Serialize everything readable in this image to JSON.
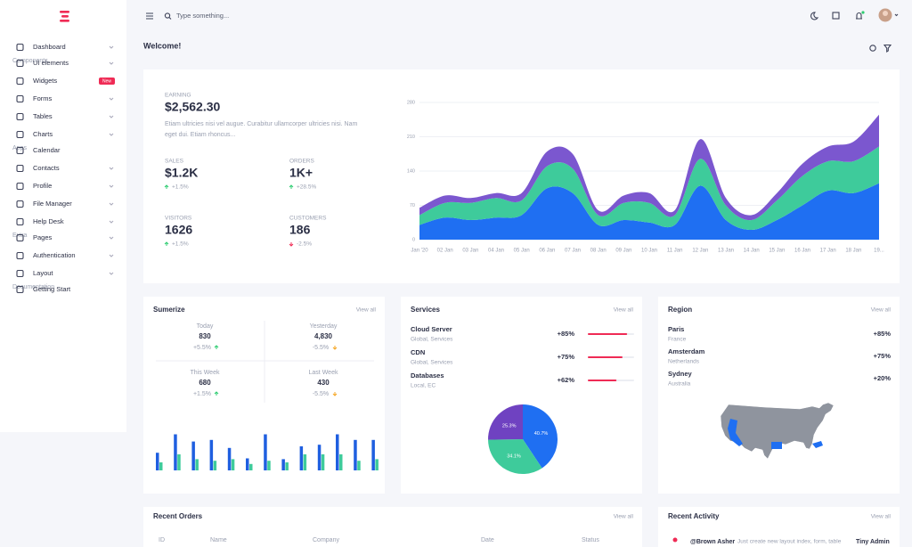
{
  "sidebar": {
    "sections": [
      {
        "items": [
          {
            "label": "Dashboard",
            "submenu": true
          }
        ]
      },
      {
        "title": "Components",
        "items": [
          {
            "label": "UI elements",
            "submenu": true
          },
          {
            "label": "Widgets",
            "badge": "New"
          },
          {
            "label": "Forms",
            "submenu": true
          },
          {
            "label": "Tables",
            "submenu": true
          },
          {
            "label": "Charts",
            "submenu": true
          }
        ]
      },
      {
        "title": "Apps",
        "items": [
          {
            "label": "Calendar"
          },
          {
            "label": "Contacts",
            "submenu": true
          },
          {
            "label": "Profile",
            "submenu": true
          },
          {
            "label": "File Manager",
            "submenu": true
          },
          {
            "label": "Help Desk",
            "submenu": true
          }
        ]
      },
      {
        "title": "Extra",
        "items": [
          {
            "label": "Pages",
            "submenu": true
          },
          {
            "label": "Authentication",
            "submenu": true
          },
          {
            "label": "Layout",
            "submenu": true
          }
        ]
      },
      {
        "title": "Documentation",
        "items": [
          {
            "label": "Getting Start"
          }
        ]
      }
    ]
  },
  "topbar": {
    "search_placeholder": "Type something..."
  },
  "page_title": "Welcome!",
  "earning": {
    "label": "EARNING",
    "amount": "$2,562.30",
    "description": [
      "Etiam ultricies nisi vel augue. Curabitur ullamcorper ultricies nisi. Nam",
      "eget dui. Etiam rhoncus..."
    ],
    "stats": [
      {
        "label": "SALES",
        "value": "$1.2K",
        "change": "+1.5%"
      },
      {
        "label": "ORDERS",
        "value": "1K+",
        "change": "+28.5%"
      },
      {
        "label": "VISITORS",
        "value": "1626",
        "change": "+1.5%"
      },
      {
        "label": "CUSTOMERS",
        "value": "186",
        "change": "-2.5%"
      }
    ],
    "chart_data": {
      "type": "area",
      "stacked": true,
      "x": [
        "Jan '20",
        "02 Jan",
        "03 Jan",
        "04 Jan",
        "05 Jan",
        "06 Jan",
        "07 Jan",
        "08 Jan",
        "09 Jan",
        "10 Jan",
        "11 Jan",
        "12 Jan",
        "13 Jan",
        "14 Jan",
        "15 Jan",
        "16 Jan",
        "17 Jan",
        "18 Jan",
        "19..."
      ],
      "series": [
        {
          "color": "#1f6ff2",
          "values": [
            30,
            45,
            40,
            45,
            50,
            105,
            95,
            30,
            40,
            35,
            30,
            110,
            40,
            20,
            40,
            70,
            100,
            95,
            115
          ]
        },
        {
          "color": "#3ecb9b",
          "values": [
            20,
            30,
            35,
            40,
            30,
            45,
            50,
            20,
            35,
            40,
            20,
            55,
            30,
            20,
            40,
            60,
            60,
            65,
            75
          ]
        },
        {
          "color": "#7b57cf",
          "values": [
            15,
            15,
            10,
            10,
            15,
            30,
            30,
            10,
            15,
            20,
            10,
            40,
            15,
            10,
            15,
            25,
            30,
            40,
            65
          ]
        }
      ],
      "ylim": [
        0,
        280
      ],
      "yticks": [
        0,
        70,
        140,
        210,
        280
      ],
      "grid": true
    }
  },
  "summary": {
    "title": "Sumerize",
    "link": "View all",
    "periods": [
      {
        "label": "Today",
        "value": "830",
        "change": "+5.5%"
      },
      {
        "label": "Yesterday",
        "value": "4,830",
        "change": "-5.5%"
      },
      {
        "label": "This Week",
        "value": "680",
        "change": "+1.5%"
      },
      {
        "label": "Last Week",
        "value": "430",
        "change": "-5.5%"
      }
    ],
    "chart_data": {
      "type": "bar",
      "categories": [
        null,
        null,
        null,
        null,
        null,
        null,
        null,
        null,
        null,
        null,
        null,
        null,
        null
      ],
      "series": [
        {
          "color": "#1f5fe0",
          "values": [
            22,
            45,
            36,
            38,
            28,
            15,
            45,
            14,
            30,
            32,
            45,
            38,
            38
          ]
        },
        {
          "color": "#3ecb9b",
          "values": [
            10,
            20,
            14,
            12,
            14,
            8,
            12,
            10,
            20,
            20,
            20,
            12,
            14
          ]
        }
      ],
      "ylim": [
        0,
        50
      ]
    }
  },
  "services": {
    "title": "Services",
    "link": "View all",
    "items": [
      {
        "name": "Cloud Server",
        "sub": "Global, Services",
        "value": 85,
        "value_label": "+85%"
      },
      {
        "name": "CDN",
        "sub": "Global, Services",
        "value": 75,
        "value_label": "+75%"
      },
      {
        "name": "Databases",
        "sub": "Local, EC",
        "value": 62,
        "value_label": "+62%"
      }
    ],
    "chart_data": {
      "type": "pie",
      "values": [
        40.7,
        34.1,
        25.3
      ],
      "value_labels": [
        "40.7%",
        "34.1%",
        "25.3%"
      ],
      "colors": [
        "#1f6ff2",
        "#3ecb9b",
        "#6f42c1"
      ]
    }
  },
  "region": {
    "title": "Region",
    "link": "View all",
    "items": [
      {
        "name": "Paris",
        "sub": "France",
        "change": "+85%"
      },
      {
        "name": "Amsterdam",
        "sub": "Netherlands",
        "change": "+75%"
      },
      {
        "name": "Sydney",
        "sub": "Australia",
        "change": "+20%"
      }
    ]
  },
  "recent_orders": {
    "title": "Recent Orders",
    "link": "View all",
    "columns": [
      "ID",
      "Name",
      "Company",
      "Date",
      "Status"
    ]
  },
  "recent_activity": {
    "title": "Recent Activity",
    "link": "View all",
    "items": [
      {
        "user": "@Brown Asher",
        "text": "Just create new layout index, form, table",
        "target": "Tiny Admin"
      }
    ]
  }
}
